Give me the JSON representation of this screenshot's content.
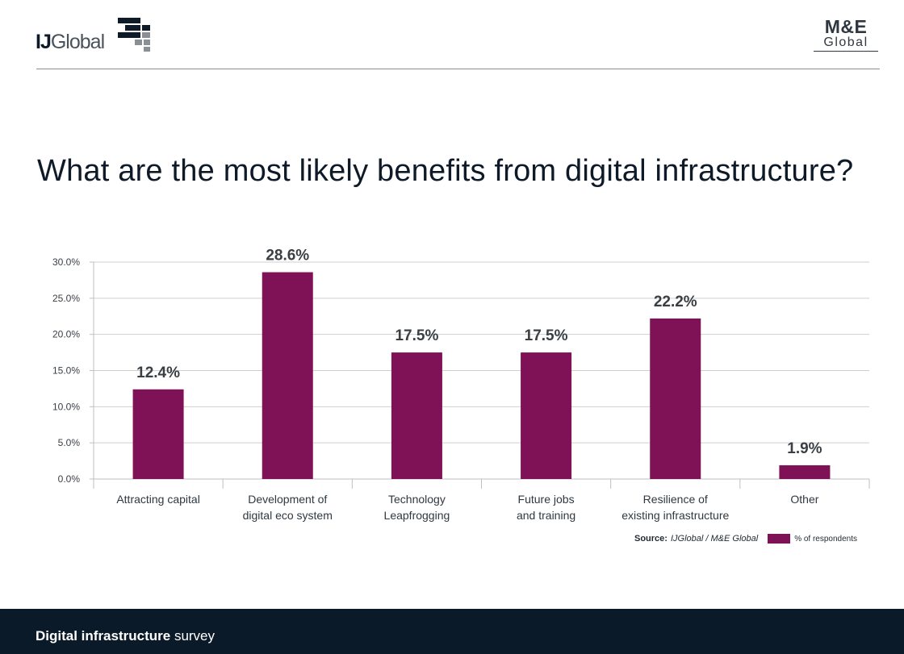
{
  "header": {
    "logo_left": {
      "bold": "IJ",
      "rest": "Global"
    },
    "logo_right": {
      "top": "M&E",
      "bottom": "Global"
    }
  },
  "page_title": "What are the most likely benefits from digital infrastructure?",
  "colors": {
    "bar": "#7f1157",
    "grid": "#cfcfcf",
    "axis": "#bfbfbf",
    "footer_bg": "#0b1a29"
  },
  "chart_data": {
    "type": "bar",
    "categories": [
      [
        "Attracting capital"
      ],
      [
        "Development of",
        "digital eco system"
      ],
      [
        "Technology",
        "Leapfrogging"
      ],
      [
        "Future jobs",
        "and training"
      ],
      [
        "Resilience of",
        "existing infrastructure"
      ],
      [
        "Other"
      ]
    ],
    "series": [
      {
        "name": "% of respondents",
        "values": [
          12.4,
          28.6,
          17.5,
          17.5,
          22.2,
          1.9
        ]
      }
    ],
    "data_labels": [
      "12.4%",
      "28.6%",
      "17.5%",
      "17.5%",
      "22.2%",
      "1.9%"
    ],
    "y_ticks": [
      0,
      5,
      10,
      15,
      20,
      25,
      30
    ],
    "y_tick_labels": [
      "0.0%",
      "5.0%",
      "10.0%",
      "15.0%",
      "20.0%",
      "25.0%",
      "30.0%"
    ],
    "ylim": [
      0,
      30
    ],
    "grid": true,
    "legend_position": "bottom-right"
  },
  "source": {
    "label": "Source:",
    "value": "IJGlobal / M&E Global"
  },
  "footer": {
    "bold": "Digital infrastructure",
    "rest": "survey"
  }
}
